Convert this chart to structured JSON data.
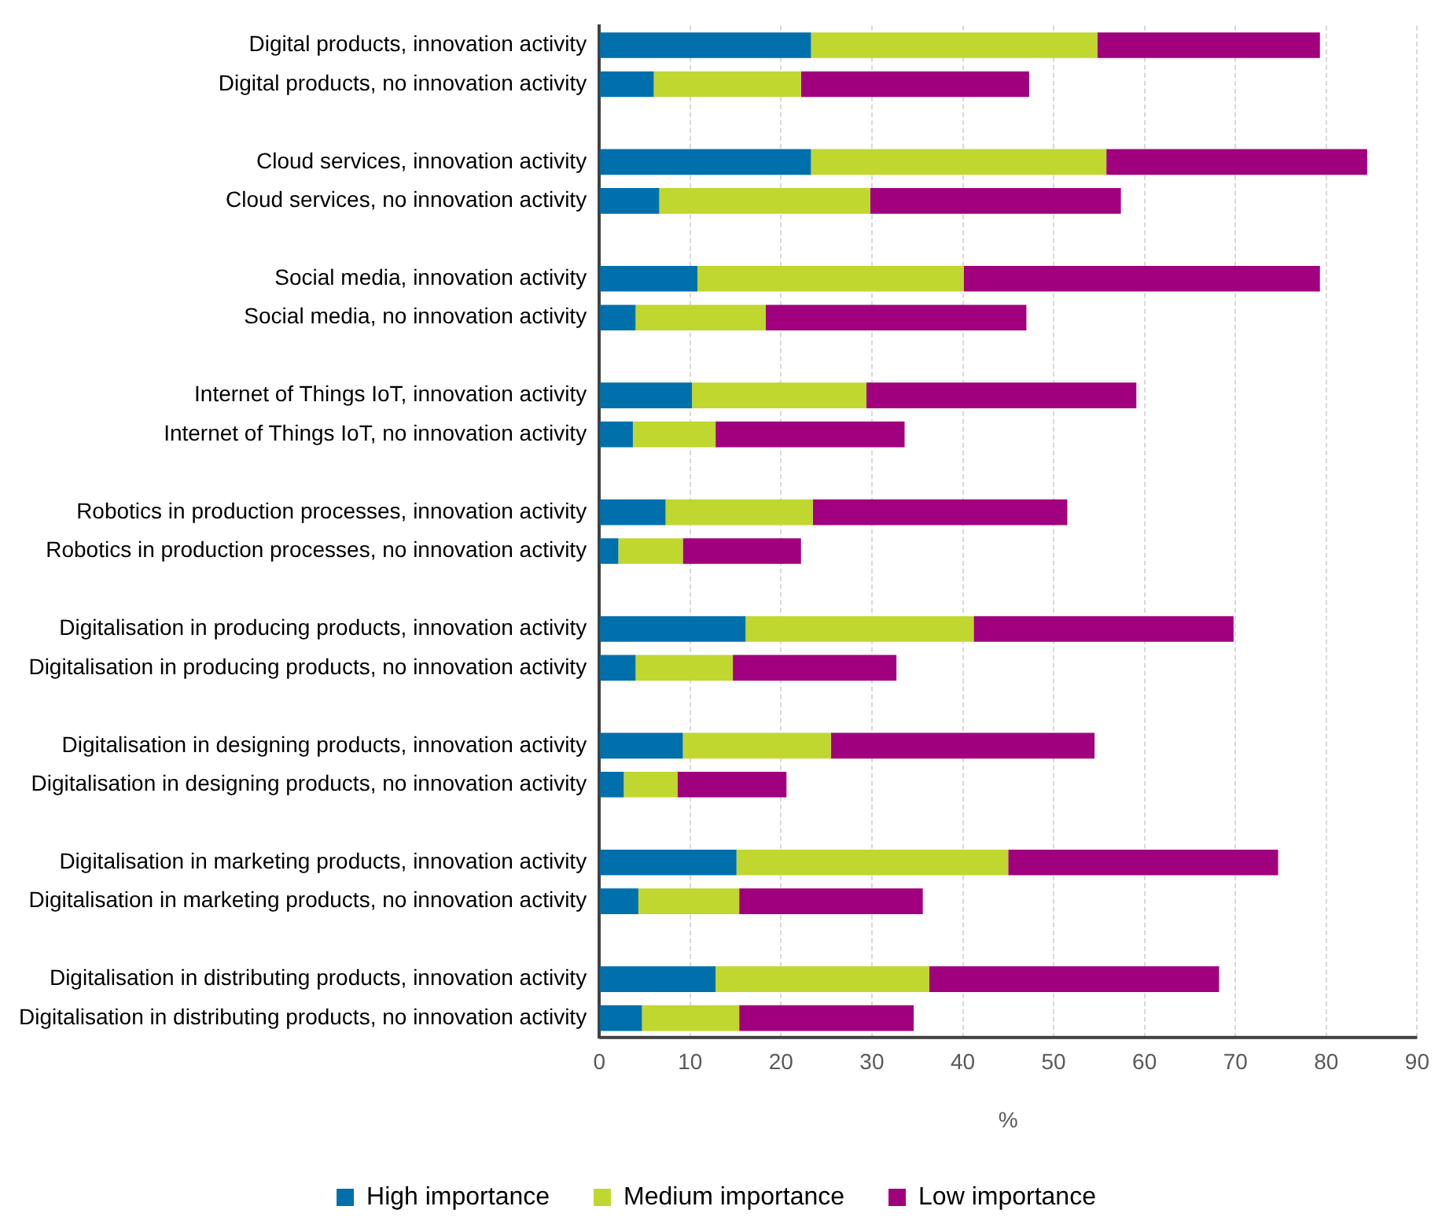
{
  "chart_data": {
    "type": "bar",
    "orientation": "horizontal",
    "stacked": true,
    "xlabel": "%",
    "categories": [
      "Digital products, innovation activity",
      "Digital products, no innovation activity",
      null,
      "Cloud services, innovation activity",
      "Cloud services, no innovation activity",
      null,
      "Social media, innovation activity",
      "Social media, no innovation activity",
      null,
      "Internet of Things IoT, innovation activity",
      "Internet of Things IoT, no innovation activity",
      null,
      "Robotics in production processes, innovation activity",
      "Robotics in production processes, no innovation activity",
      null,
      "Digitalisation in producing products, innovation activity",
      "Digitalisation in producing products, no innovation activity",
      null,
      "Digitalisation in designing products, innovation activity",
      "Digitalisation in designing products, no innovation activity",
      null,
      "Digitalisation in marketing products, innovation activity",
      "Digitalisation in marketing products, no innovation activity",
      null,
      "Digitalisation in distributing products, innovation activity",
      "Digitalisation in distributing products, no innovation activity"
    ],
    "series": [
      {
        "name": "High importance",
        "color": "#0070ac",
        "values": [
          23.3,
          6.0,
          null,
          23.3,
          6.6,
          null,
          10.8,
          4.0,
          null,
          10.2,
          3.7,
          null,
          7.3,
          2.1,
          null,
          16.1,
          4.0,
          null,
          9.2,
          2.7,
          null,
          15.1,
          4.3,
          null,
          12.8,
          4.7
        ]
      },
      {
        "name": "Medium importance",
        "color": "#c0d72f",
        "values": [
          31.5,
          16.2,
          null,
          32.5,
          23.2,
          null,
          29.3,
          14.3,
          null,
          19.2,
          9.1,
          null,
          16.2,
          7.1,
          null,
          25.1,
          10.7,
          null,
          16.3,
          5.9,
          null,
          29.9,
          11.1,
          null,
          23.5,
          10.7
        ]
      },
      {
        "name": "Low importance",
        "color": "#a0007d",
        "values": [
          24.5,
          25.1,
          null,
          28.7,
          27.6,
          null,
          39.2,
          28.7,
          null,
          29.7,
          20.8,
          null,
          28.0,
          13.0,
          null,
          28.6,
          18.0,
          null,
          29.0,
          12.0,
          null,
          29.7,
          20.2,
          null,
          31.9,
          19.2
        ]
      }
    ],
    "xlim": [
      0,
      90
    ],
    "xticks": [
      0,
      10,
      20,
      30,
      40,
      50,
      60,
      70,
      80,
      90
    ],
    "grid": "x",
    "legend": "bottom"
  }
}
